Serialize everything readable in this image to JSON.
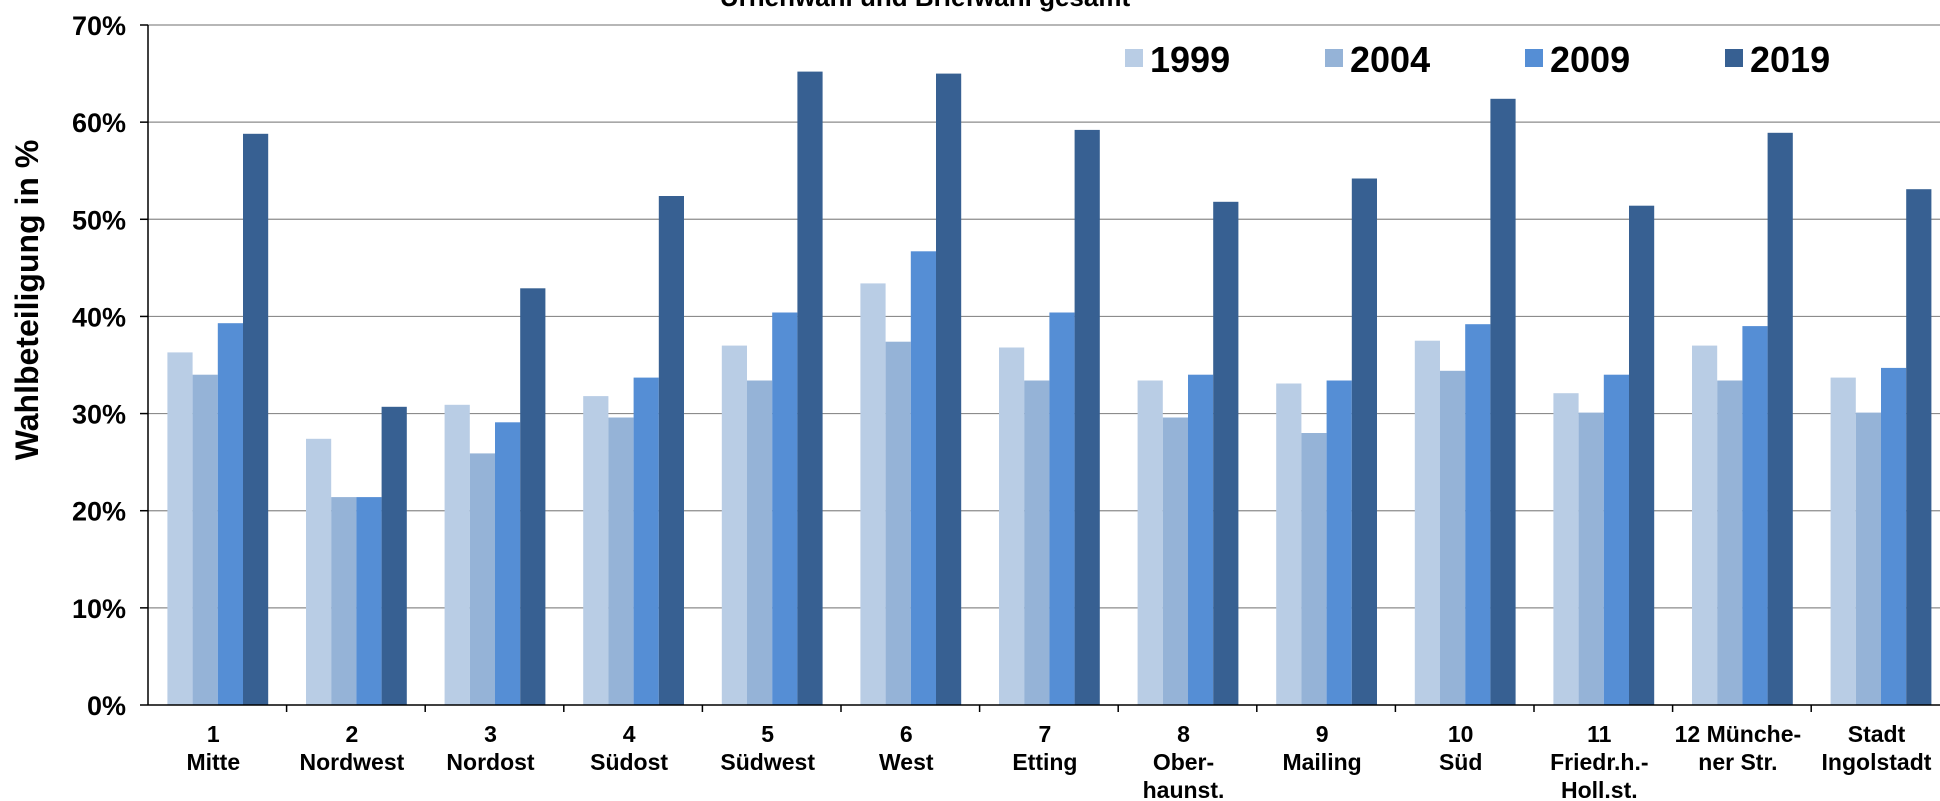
{
  "chart_data": {
    "type": "bar",
    "title": "Urnenwahl und Briefwahl gesamt",
    "ylabel": "Wahlbeteiligung in %",
    "xlabel": "",
    "ylim": [
      0,
      70
    ],
    "yticks": [
      "0%",
      "10%",
      "20%",
      "30%",
      "40%",
      "50%",
      "60%",
      "70%"
    ],
    "grid": true,
    "legend_position": "top-right",
    "categories": [
      [
        "1",
        "Mitte"
      ],
      [
        "2",
        "Nordwest"
      ],
      [
        "3",
        "Nordost"
      ],
      [
        "4",
        "Südost"
      ],
      [
        "5",
        "Südwest"
      ],
      [
        "6",
        "West"
      ],
      [
        "7",
        "Etting"
      ],
      [
        "8",
        "Ober-",
        "haunst."
      ],
      [
        "9",
        "Mailing"
      ],
      [
        "10",
        "Süd"
      ],
      [
        "11",
        "Friedr.h.-",
        "Holl.st."
      ],
      [
        "12 Münche-",
        "ner Str."
      ],
      [
        "Stadt",
        "Ingolstadt"
      ]
    ],
    "series": [
      {
        "name": "1999",
        "color": "#b9cde5",
        "values": [
          36.3,
          27.4,
          30.9,
          31.8,
          37.0,
          43.4,
          36.8,
          33.4,
          33.1,
          37.5,
          32.1,
          37.0,
          33.7
        ]
      },
      {
        "name": "2004",
        "color": "#95b3d7",
        "values": [
          34.0,
          21.4,
          25.9,
          29.6,
          33.4,
          37.4,
          33.4,
          29.6,
          28.0,
          34.4,
          30.1,
          33.4,
          30.1
        ]
      },
      {
        "name": "2009",
        "color": "#558ed5",
        "values": [
          39.3,
          21.4,
          29.1,
          33.7,
          40.4,
          46.7,
          40.4,
          34.0,
          33.4,
          39.2,
          34.0,
          39.0,
          34.7
        ]
      },
      {
        "name": "2019",
        "color": "#376092",
        "values": [
          58.8,
          30.7,
          42.9,
          52.4,
          65.2,
          65.0,
          59.2,
          51.8,
          54.2,
          62.4,
          51.4,
          58.9,
          53.1
        ]
      }
    ]
  }
}
